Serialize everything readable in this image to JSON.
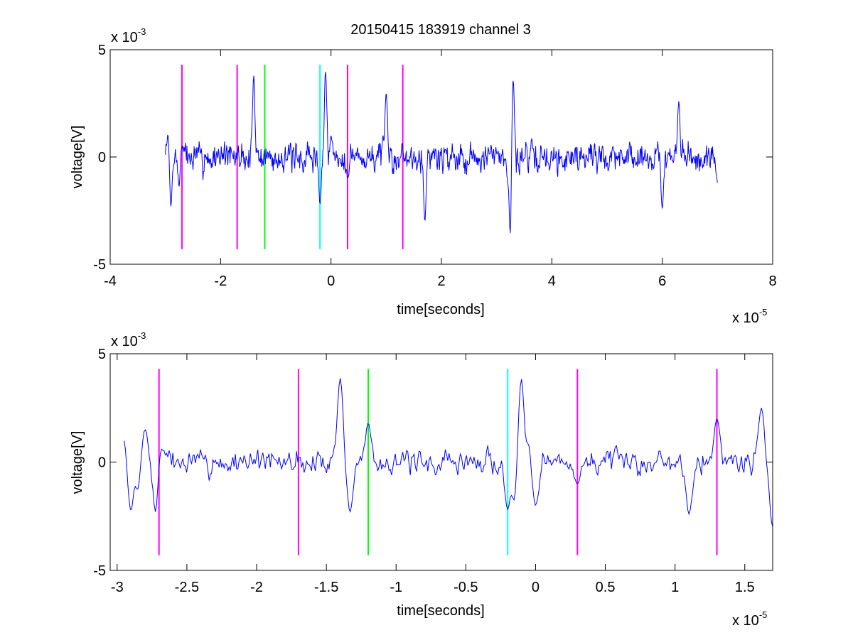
{
  "figure": {
    "title": "20150415 183919 channel 3"
  },
  "chart_data": [
    {
      "type": "line",
      "title": "20150415 183919 channel 3",
      "xlabel": "time[seconds]",
      "ylabel": "voltage[V]",
      "x_exponent_label": "x 10",
      "x_exponent": "-5",
      "y_exponent_label": "x 10",
      "y_exponent": "-3",
      "xlim": [
        -4,
        8
      ],
      "ylim": [
        -5,
        5
      ],
      "xticks": [
        -4,
        -2,
        0,
        2,
        4,
        6,
        8
      ],
      "xtick_labels": [
        "-4",
        "-2",
        "0",
        "2",
        "4",
        "6",
        "8"
      ],
      "yticks": [
        -5,
        0,
        5
      ],
      "ytick_labels": [
        "-5",
        "0",
        "5"
      ],
      "grid": false,
      "series": [
        {
          "color": "#0000ff",
          "seed": 7,
          "x_range": [
            -3.0,
            7.0
          ],
          "samples": 1000,
          "amplitude": 1.5,
          "anchors": [
            [
              -2.95,
              1.2
            ],
            [
              -2.9,
              -2.3
            ],
            [
              -2.75,
              -1.5
            ],
            [
              -2.7,
              0.5
            ],
            [
              -1.4,
              3.8
            ],
            [
              -0.2,
              -2.2
            ],
            [
              -0.1,
              4.0
            ],
            [
              0.0,
              1.0
            ],
            [
              0.3,
              -1.0
            ],
            [
              1.0,
              3.0
            ],
            [
              1.7,
              -3.0
            ],
            [
              3.2,
              -1.0
            ],
            [
              3.25,
              -3.9
            ],
            [
              3.3,
              3.6
            ],
            [
              6.0,
              -2.4
            ],
            [
              6.3,
              2.6
            ],
            [
              7.0,
              -1.2
            ]
          ]
        }
      ],
      "markers": [
        {
          "x": -2.7,
          "color": "#ff00ff"
        },
        {
          "x": -1.7,
          "color": "#ff00ff"
        },
        {
          "x": -1.2,
          "color": "#00ff00"
        },
        {
          "x": -0.2,
          "color": "#00ffff"
        },
        {
          "x": 0.3,
          "color": "#ff00ff"
        },
        {
          "x": 1.3,
          "color": "#ff00ff"
        }
      ],
      "marker_ylim": [
        -4.3,
        4.3
      ]
    },
    {
      "type": "line",
      "title": "",
      "xlabel": "time[seconds]",
      "ylabel": "voltage[V]",
      "x_exponent_label": "x 10",
      "x_exponent": "-5",
      "y_exponent_label": "x 10",
      "y_exponent": "-3",
      "xlim": [
        -3.05,
        1.7
      ],
      "ylim": [
        -5,
        5
      ],
      "xticks": [
        -3,
        -2.5,
        -2,
        -1.5,
        -1,
        -0.5,
        0,
        0.5,
        1,
        1.5
      ],
      "xtick_labels": [
        "-3",
        "-2.5",
        "-2",
        "-1.5",
        "-1",
        "-0.5",
        "0",
        "0.5",
        "1",
        "1.5"
      ],
      "yticks": [
        -5,
        0,
        5
      ],
      "ytick_labels": [
        "-5",
        "0",
        "5"
      ],
      "grid": false,
      "series": [
        {
          "color": "#0000ff",
          "seed": 7,
          "x_range": [
            -2.95,
            1.7
          ],
          "samples": 520,
          "amplitude": 1.2,
          "anchors": [
            [
              -2.95,
              1.2
            ],
            [
              -2.9,
              -2.3
            ],
            [
              -2.85,
              -1.4
            ],
            [
              -2.8,
              1.5
            ],
            [
              -2.72,
              -2.7
            ],
            [
              -2.68,
              0.6
            ],
            [
              -1.4,
              3.9
            ],
            [
              -1.33,
              -2.3
            ],
            [
              -1.2,
              1.8
            ],
            [
              -0.2,
              -2.2
            ],
            [
              -0.15,
              -2.0
            ],
            [
              -0.1,
              4.0
            ],
            [
              -0.05,
              1.0
            ],
            [
              0.0,
              -2.0
            ],
            [
              0.3,
              -1.0
            ],
            [
              1.3,
              2.0
            ],
            [
              1.1,
              -2.4
            ],
            [
              1.62,
              2.5
            ],
            [
              1.7,
              -3.0
            ]
          ]
        }
      ],
      "markers": [
        {
          "x": -2.7,
          "color": "#ff00ff"
        },
        {
          "x": -1.7,
          "color": "#ff00ff"
        },
        {
          "x": -1.2,
          "color": "#00ff00"
        },
        {
          "x": -0.2,
          "color": "#00ffff"
        },
        {
          "x": 0.3,
          "color": "#ff00ff"
        },
        {
          "x": 1.3,
          "color": "#ff00ff"
        }
      ],
      "marker_ylim": [
        -4.3,
        4.3
      ]
    }
  ]
}
